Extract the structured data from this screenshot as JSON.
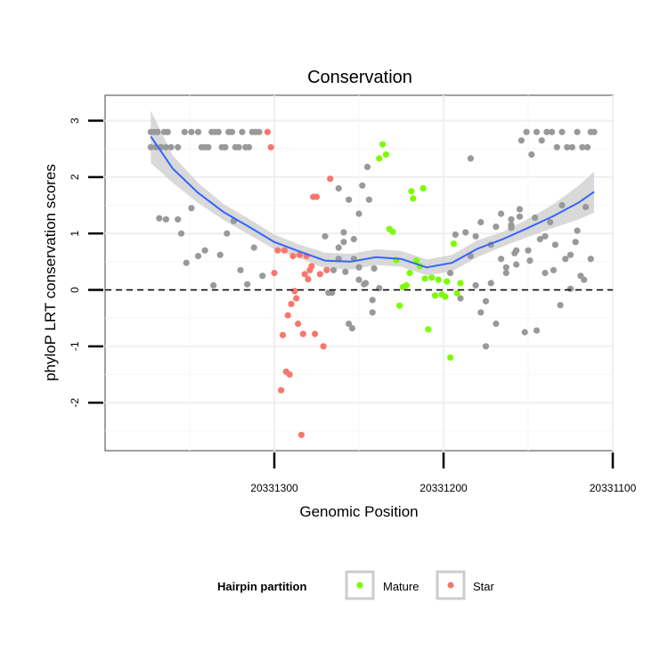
{
  "chart_data": {
    "type": "scatter",
    "title": "Conservation",
    "xlabel": "Genomic Position",
    "ylabel": "phyloP LRT conservation scores",
    "x_reversed": true,
    "xlim": [
      20331100,
      20331400
    ],
    "ylim": [
      -2.85,
      3.45
    ],
    "x_ticks": [
      20331300,
      20331200,
      20331100
    ],
    "y_ticks": [
      -2,
      -1,
      0,
      1,
      2,
      3
    ],
    "reference_line": {
      "y": 0,
      "style": "dashed"
    },
    "grid": true,
    "legend": {
      "title": "Hairpin partition",
      "position": "bottom",
      "entries": [
        {
          "label": "Mature",
          "color": "#7CFC00"
        },
        {
          "label": "Star",
          "color": "#F8766D"
        }
      ]
    },
    "colors": {
      "other": "#999999",
      "Mature": "#7CFC00",
      "Star": "#F8766D",
      "smooth": "#3366FF",
      "ribbon": "#CCCCCC"
    },
    "smooth": {
      "x": [
        20331373,
        20331360,
        20331345,
        20331330,
        20331315,
        20331300,
        20331285,
        20331270,
        20331255,
        20331240,
        20331225,
        20331210,
        20331195,
        20331180,
        20331165,
        20331150,
        20331135,
        20331120,
        20331111
      ],
      "y": [
        2.72,
        2.15,
        1.72,
        1.38,
        1.12,
        0.85,
        0.68,
        0.52,
        0.5,
        0.58,
        0.55,
        0.4,
        0.48,
        0.73,
        0.9,
        1.1,
        1.31,
        1.55,
        1.74
      ],
      "lower": [
        2.25,
        1.9,
        1.54,
        1.24,
        0.98,
        0.72,
        0.56,
        0.38,
        0.36,
        0.44,
        0.41,
        0.26,
        0.33,
        0.58,
        0.77,
        0.94,
        1.1,
        1.25,
        1.37
      ],
      "upper": [
        3.18,
        2.38,
        1.9,
        1.52,
        1.26,
        0.98,
        0.8,
        0.66,
        0.64,
        0.72,
        0.69,
        0.54,
        0.62,
        0.88,
        1.03,
        1.26,
        1.52,
        1.85,
        2.1
      ]
    },
    "series": [
      {
        "name": "Mature",
        "x": [
          20331238,
          20331236,
          20331234,
          20331232,
          20331230,
          20331228,
          20331226,
          20331224,
          20331222,
          20331220,
          20331219,
          20331218,
          20331216,
          20331214,
          20331212,
          20331211,
          20331209,
          20331207,
          20331205,
          20331203,
          20331201,
          20331199,
          20331198,
          20331196,
          20331194,
          20331192,
          20331190
        ],
        "y": [
          2.33,
          2.58,
          2.4,
          1.08,
          1.03,
          0.53,
          -0.28,
          0.05,
          0.08,
          0.3,
          1.75,
          1.62,
          0.52,
          0.42,
          1.8,
          0.2,
          -0.7,
          0.22,
          -0.1,
          0.18,
          -0.08,
          -0.12,
          0.15,
          -1.2,
          0.82,
          -0.06,
          0.12
        ]
      },
      {
        "name": "Star",
        "x": [
          20331304,
          20331302,
          20331300,
          20331298,
          20331296,
          20331295,
          20331294,
          20331293,
          20331292,
          20331291,
          20331290,
          20331289,
          20331288,
          20331287,
          20331286,
          20331285,
          20331284,
          20331283,
          20331282,
          20331281,
          20331280,
          20331279,
          20331278,
          20331277,
          20331276,
          20331275,
          20331273,
          20331271,
          20331269,
          20331267
        ],
        "y": [
          2.8,
          2.53,
          0.3,
          0.7,
          -1.78,
          -0.8,
          0.7,
          -1.45,
          -0.45,
          -1.5,
          -0.25,
          0.6,
          -0.02,
          -0.15,
          -0.6,
          0.62,
          -2.57,
          -0.78,
          0.28,
          0.6,
          0.19,
          0.35,
          0.42,
          1.65,
          -0.78,
          1.65,
          0.28,
          -1.0,
          0.35,
          1.97
        ]
      },
      {
        "x": [
          20331373,
          20331371,
          20331369,
          20331367,
          20331365,
          20331363,
          20331373,
          20331370,
          20331367,
          20331364,
          20331361,
          20331357,
          20331353,
          20331349,
          20331345,
          20331341,
          20331337,
          20331333,
          20331329,
          20331325,
          20331321,
          20331317,
          20331313,
          20331309,
          20331343,
          20331339,
          20331335,
          20331331,
          20331327,
          20331323,
          20331319,
          20331315,
          20331311,
          20331368,
          20331364,
          20331357,
          20331355,
          20331352,
          20331349,
          20331345,
          20331341,
          20331336,
          20331332,
          20331328,
          20331324,
          20331320,
          20331316,
          20331312,
          20331307,
          20331262,
          20331259,
          20331256,
          20331253,
          20331250,
          20331247,
          20331244,
          20331241,
          20331238,
          20331268,
          20331265,
          20331262,
          20331259,
          20331256,
          20331253,
          20331250,
          20331248,
          20331245,
          20331242,
          20331270,
          20331266,
          20331262,
          20331258,
          20331254,
          20331250,
          20331246,
          20331242,
          20331196,
          20331193,
          20331190,
          20331187,
          20331184,
          20331181,
          20331178,
          20331175,
          20331172,
          20331169,
          20331166,
          20331163,
          20331160,
          20331157,
          20331184,
          20331181,
          20331178,
          20331175,
          20331172,
          20331169,
          20331166,
          20331163,
          20331160,
          20331157,
          20331154,
          20331151,
          20331148,
          20331145,
          20331142,
          20331139,
          20331136,
          20331133,
          20331130,
          20331127,
          20331124,
          20331121,
          20331118,
          20331115,
          20331113,
          20331111,
          20331158,
          20331155,
          20331152,
          20331149,
          20331146,
          20331143,
          20331140,
          20331137,
          20331134,
          20331131,
          20331128,
          20331125,
          20331122,
          20331119,
          20331116,
          20331113,
          20331160,
          20331155,
          20331150,
          20331145,
          20331140,
          20331135,
          20331130,
          20331125,
          20331121,
          20331117
        ],
        "y": [
          2.8,
          2.8,
          2.8,
          2.53,
          2.8,
          2.8,
          2.53,
          2.53,
          2.53,
          2.53,
          2.53,
          2.53,
          2.8,
          2.8,
          2.8,
          2.53,
          2.8,
          2.8,
          2.53,
          2.8,
          2.53,
          2.53,
          2.8,
          2.8,
          2.53,
          2.53,
          2.8,
          2.53,
          2.8,
          2.53,
          2.8,
          2.53,
          2.8,
          1.27,
          1.25,
          1.25,
          1.0,
          0.48,
          1.45,
          0.6,
          0.7,
          0.08,
          0.62,
          1.0,
          1.22,
          0.35,
          0.1,
          0.75,
          0.25,
          1.8,
          0.85,
          -0.6,
          0.55,
          1.35,
          0.1,
          1.6,
          0.38,
          0.03,
          -0.05,
          0.35,
          0.75,
          1.02,
          1.6,
          0.9,
          0.18,
          1.85,
          2.18,
          -0.4,
          0.95,
          -0.05,
          0.55,
          0.32,
          -0.68,
          0.4,
          0.12,
          -0.18,
          0.3,
          0.98,
          -0.15,
          1.02,
          0.6,
          0.08,
          -0.4,
          -1.0,
          0.12,
          -0.6,
          1.35,
          0.4,
          1.25,
          0.7,
          2.33,
          0.95,
          1.2,
          -0.2,
          0.8,
          1.12,
          0.55,
          0.3,
          1.15,
          0.45,
          2.65,
          2.8,
          2.4,
          2.8,
          2.65,
          2.8,
          2.8,
          2.53,
          2.8,
          2.53,
          2.53,
          2.8,
          2.53,
          2.53,
          2.8,
          2.8,
          0.65,
          1.43,
          -0.75,
          0.52,
          1.28,
          0.9,
          0.3,
          1.2,
          0.8,
          -0.27,
          0.55,
          0.02,
          0.85,
          0.25,
          1.47,
          0.55,
          1.1,
          1.3,
          0.7,
          -0.72,
          0.95,
          0.35,
          1.5,
          0.62,
          1.05,
          0.18
        ]
      }
    ]
  },
  "legend": {
    "title": "Hairpin partition",
    "items": [
      {
        "label": "Mature",
        "color": "#7CFC00"
      },
      {
        "label": "Star",
        "color": "#F8766D"
      }
    ]
  }
}
